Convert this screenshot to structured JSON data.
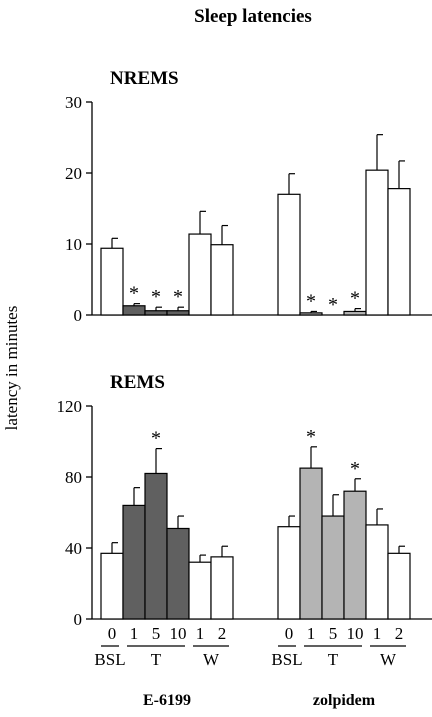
{
  "chart_data": [
    {
      "type": "bar",
      "title": "Sleep latencies",
      "panel": "NREMS",
      "ylabel": "latency in minutes",
      "ylim": [
        0,
        30
      ],
      "yticks": [
        "0",
        "10",
        "20",
        "30"
      ],
      "groups": [
        {
          "drug": "E-6199",
          "categories": [
            "0",
            "1",
            "5",
            "10",
            "1",
            "2"
          ],
          "values": [
            9.4,
            1.3,
            0.6,
            0.6,
            11.4,
            9.9
          ],
          "errors": [
            1.4,
            0.3,
            0.5,
            0.5,
            3.2,
            2.7
          ],
          "fills": [
            "#ffffff",
            "#606060",
            "#606060",
            "#606060",
            "#ffffff",
            "#ffffff"
          ],
          "significant": [
            false,
            true,
            true,
            true,
            false,
            false
          ]
        },
        {
          "drug": "zolpidem",
          "categories": [
            "0",
            "1",
            "5",
            "10",
            "1",
            "2"
          ],
          "values": [
            17.0,
            0.3,
            0.0,
            0.5,
            20.4,
            17.8
          ],
          "errors": [
            2.9,
            0.2,
            0.0,
            0.4,
            5.0,
            3.9
          ],
          "fills": [
            "#ffffff",
            "#b4b4b4",
            "#b4b4b4",
            "#b4b4b4",
            "#ffffff",
            "#ffffff"
          ],
          "significant": [
            false,
            true,
            true,
            true,
            false,
            false
          ]
        }
      ]
    },
    {
      "type": "bar",
      "panel": "REMS",
      "ylabel": "latency in minutes",
      "ylim": [
        0,
        120
      ],
      "yticks": [
        "0",
        "40",
        "80",
        "120"
      ],
      "groups": [
        {
          "drug": "E-6199",
          "categories": [
            "0",
            "1",
            "5",
            "10",
            "1",
            "2"
          ],
          "values": [
            37,
            64,
            82,
            51,
            32,
            35
          ],
          "errors": [
            6,
            10,
            14,
            7,
            4,
            6
          ],
          "fills": [
            "#ffffff",
            "#606060",
            "#606060",
            "#606060",
            "#ffffff",
            "#ffffff"
          ],
          "significant": [
            false,
            false,
            true,
            false,
            false,
            false
          ]
        },
        {
          "drug": "zolpidem",
          "categories": [
            "0",
            "1",
            "5",
            "10",
            "1",
            "2"
          ],
          "values": [
            52,
            85,
            58,
            72,
            53,
            37
          ],
          "errors": [
            6,
            12,
            12,
            7,
            9,
            4
          ],
          "fills": [
            "#ffffff",
            "#b4b4b4",
            "#b4b4b4",
            "#b4b4b4",
            "#ffffff",
            "#ffffff"
          ],
          "significant": [
            false,
            true,
            false,
            true,
            false,
            false
          ]
        }
      ]
    }
  ],
  "significance_mark": "*",
  "x_groups": [
    "BSL",
    "T",
    "W"
  ],
  "drugs": [
    "E-6199",
    "zolpidem"
  ]
}
